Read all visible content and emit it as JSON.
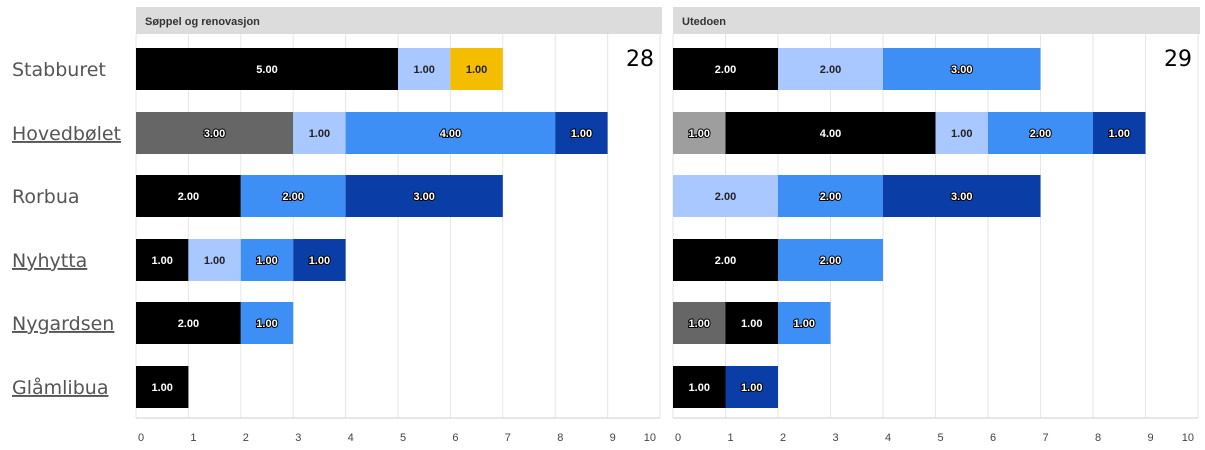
{
  "colors": {
    "dark_gray": "#666666",
    "gray": "#9e9e9e",
    "black": "#000000",
    "light_blue": "#a9c8ff",
    "blue": "#3d8ef5",
    "dark_blue": "#0a3ea6",
    "yellow": "#f5bd00",
    "panel_header": "#dcdcdc",
    "grid": "#e6e6e6"
  },
  "chart_data": {
    "type": "bar",
    "orientation": "horizontal",
    "stacked": true,
    "categories": [
      "Stabburet",
      "Hovedbølet",
      "Rorbua",
      "Nyhytta",
      "Nygardsen",
      "Glåmlibua"
    ],
    "spellcheck_flagged": [
      "Hovedbølet",
      "Nyhytta",
      "Nygardsen",
      "Glåmlibua"
    ],
    "xlim": [
      0,
      10
    ],
    "xticks": [
      0,
      1,
      2,
      3,
      4,
      5,
      6,
      7,
      8,
      9,
      10
    ],
    "value_format": "2 decimals",
    "grid": true,
    "legend": "none",
    "panels": [
      {
        "title": "Søppel og renovasjon",
        "corner_number": "28",
        "rows": [
          [
            {
              "value": 5,
              "color": "black"
            },
            {
              "value": 1,
              "color": "light_blue"
            },
            {
              "value": 1,
              "color": "yellow"
            }
          ],
          [
            {
              "value": 3,
              "color": "dark_gray"
            },
            {
              "value": 1,
              "color": "light_blue"
            },
            {
              "value": 4,
              "color": "blue"
            },
            {
              "value": 1,
              "color": "dark_blue"
            }
          ],
          [
            {
              "value": 2,
              "color": "black"
            },
            {
              "value": 2,
              "color": "blue"
            },
            {
              "value": 3,
              "color": "dark_blue"
            }
          ],
          [
            {
              "value": 1,
              "color": "black"
            },
            {
              "value": 1,
              "color": "light_blue"
            },
            {
              "value": 1,
              "color": "blue"
            },
            {
              "value": 1,
              "color": "dark_blue"
            }
          ],
          [
            {
              "value": 2,
              "color": "black"
            },
            {
              "value": 1,
              "color": "blue"
            }
          ],
          [
            {
              "value": 1,
              "color": "black"
            }
          ]
        ]
      },
      {
        "title": "Utedoen",
        "corner_number": "29",
        "rows": [
          [
            {
              "value": 2,
              "color": "black"
            },
            {
              "value": 2,
              "color": "light_blue"
            },
            {
              "value": 3,
              "color": "blue"
            }
          ],
          [
            {
              "value": 1,
              "color": "gray"
            },
            {
              "value": 4,
              "color": "black"
            },
            {
              "value": 1,
              "color": "light_blue"
            },
            {
              "value": 2,
              "color": "blue"
            },
            {
              "value": 1,
              "color": "dark_blue"
            }
          ],
          [
            {
              "value": 2,
              "color": "light_blue"
            },
            {
              "value": 2,
              "color": "blue"
            },
            {
              "value": 3,
              "color": "dark_blue"
            }
          ],
          [
            {
              "value": 2,
              "color": "black"
            },
            {
              "value": 2,
              "color": "blue"
            }
          ],
          [
            {
              "value": 1,
              "color": "dark_gray"
            },
            {
              "value": 1,
              "color": "black"
            },
            {
              "value": 1,
              "color": "blue"
            }
          ],
          [
            {
              "value": 1,
              "color": "black"
            },
            {
              "value": 1,
              "color": "dark_blue"
            }
          ]
        ]
      }
    ]
  }
}
